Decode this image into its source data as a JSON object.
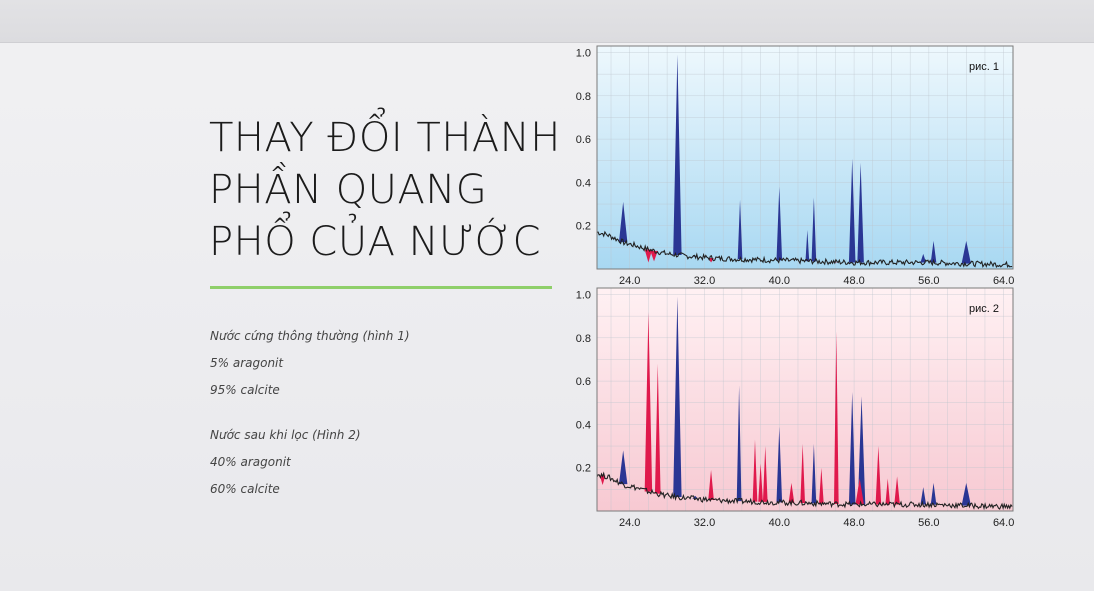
{
  "title_lines": [
    "THAY ĐỔI THÀNH",
    "PHẦN QUANG",
    "PHỔ CỦA NƯỚC"
  ],
  "notes": [
    "Nước cứng thông thường (hình 1)",
    "5% aragonit",
    "95% calcite",
    "Nước sau khi lọc (Hình 2)",
    "40% aragonit",
    "60% calcite"
  ],
  "colors": {
    "blue_peak": "#2a3694",
    "red_peak": "#e0194c",
    "accent_line": "#8fcf6a",
    "plot1_bg_top": "#eef8fd",
    "plot1_bg_bottom": "#a8d8f2",
    "plot2_bg_top": "#fff1f3",
    "plot2_bg_bottom": "#f7c9d2"
  },
  "chart_data": [
    {
      "type": "area",
      "label": "рис. 1",
      "x_ticks": [
        "24.0",
        "32.0",
        "40.0",
        "48.0",
        "56.0",
        "64.0"
      ],
      "y_ticks": [
        "0.2",
        "0.4",
        "0.6",
        "0.8",
        "1.0"
      ],
      "xlim": [
        20.5,
        65.0
      ],
      "ylim": [
        0,
        1.03
      ],
      "grid": true,
      "baseline": [
        [
          20.5,
          0.17
        ],
        [
          21.5,
          0.16
        ],
        [
          22.5,
          0.14
        ],
        [
          23.5,
          0.12
        ],
        [
          24.5,
          0.11
        ],
        [
          26,
          0.09
        ],
        [
          28,
          0.07
        ],
        [
          30,
          0.06
        ],
        [
          33,
          0.05
        ],
        [
          36,
          0.045
        ],
        [
          40,
          0.04
        ],
        [
          44,
          0.035
        ],
        [
          48,
          0.03
        ],
        [
          52,
          0.03
        ],
        [
          56,
          0.03
        ],
        [
          60,
          0.025
        ],
        [
          65,
          0.02
        ]
      ],
      "peaks": [
        {
          "x": 23.3,
          "h": 0.31,
          "w": 0.45,
          "color": "blue"
        },
        {
          "x": 26.0,
          "h": 0.03,
          "w": 0.4,
          "color": "red"
        },
        {
          "x": 26.6,
          "h": 0.035,
          "w": 0.4,
          "color": "red"
        },
        {
          "x": 29.1,
          "h": 0.99,
          "w": 0.45,
          "color": "blue"
        },
        {
          "x": 31.0,
          "h": 0.06,
          "w": 0.35,
          "color": "blue"
        },
        {
          "x": 32.7,
          "h": 0.03,
          "w": 0.3,
          "color": "red"
        },
        {
          "x": 35.8,
          "h": 0.32,
          "w": 0.25,
          "color": "blue"
        },
        {
          "x": 40.0,
          "h": 0.38,
          "w": 0.3,
          "color": "blue"
        },
        {
          "x": 43.0,
          "h": 0.18,
          "w": 0.2,
          "color": "blue"
        },
        {
          "x": 43.7,
          "h": 0.33,
          "w": 0.25,
          "color": "blue"
        },
        {
          "x": 46.0,
          "h": 0.03,
          "w": 0.3,
          "color": "red"
        },
        {
          "x": 47.8,
          "h": 0.51,
          "w": 0.35,
          "color": "blue"
        },
        {
          "x": 48.7,
          "h": 0.49,
          "w": 0.35,
          "color": "blue"
        },
        {
          "x": 55.4,
          "h": 0.07,
          "w": 0.3,
          "color": "blue"
        },
        {
          "x": 56.5,
          "h": 0.13,
          "w": 0.3,
          "color": "blue"
        },
        {
          "x": 60.0,
          "h": 0.13,
          "w": 0.5,
          "color": "blue"
        }
      ]
    },
    {
      "type": "area",
      "label": "рис. 2",
      "x_ticks": [
        "24.0",
        "32.0",
        "40.0",
        "48.0",
        "56.0",
        "64.0"
      ],
      "y_ticks": [
        "0.2",
        "0.4",
        "0.6",
        "0.8",
        "1.0"
      ],
      "xlim": [
        20.5,
        65.0
      ],
      "ylim": [
        0,
        1.03
      ],
      "grid": true,
      "baseline": [
        [
          20.5,
          0.17
        ],
        [
          21.5,
          0.16
        ],
        [
          22.5,
          0.14
        ],
        [
          23.5,
          0.12
        ],
        [
          24.5,
          0.11
        ],
        [
          26,
          0.09
        ],
        [
          28,
          0.07
        ],
        [
          30,
          0.06
        ],
        [
          33,
          0.05
        ],
        [
          36,
          0.045
        ],
        [
          40,
          0.04
        ],
        [
          44,
          0.035
        ],
        [
          48,
          0.03
        ],
        [
          52,
          0.03
        ],
        [
          56,
          0.03
        ],
        [
          60,
          0.025
        ],
        [
          65,
          0.02
        ]
      ],
      "peaks": [
        {
          "x": 21.1,
          "h": 0.12,
          "w": 0.3,
          "color": "red"
        },
        {
          "x": 23.3,
          "h": 0.28,
          "w": 0.45,
          "color": "blue"
        },
        {
          "x": 26.0,
          "h": 0.92,
          "w": 0.4,
          "color": "red"
        },
        {
          "x": 27.0,
          "h": 0.68,
          "w": 0.3,
          "color": "red"
        },
        {
          "x": 29.1,
          "h": 0.99,
          "w": 0.45,
          "color": "blue"
        },
        {
          "x": 31.0,
          "h": 0.07,
          "w": 0.3,
          "color": "blue"
        },
        {
          "x": 32.7,
          "h": 0.19,
          "w": 0.3,
          "color": "red"
        },
        {
          "x": 35.7,
          "h": 0.58,
          "w": 0.25,
          "color": "blue"
        },
        {
          "x": 37.4,
          "h": 0.33,
          "w": 0.25,
          "color": "red"
        },
        {
          "x": 38.0,
          "h": 0.22,
          "w": 0.25,
          "color": "red"
        },
        {
          "x": 38.5,
          "h": 0.3,
          "w": 0.25,
          "color": "red"
        },
        {
          "x": 40.0,
          "h": 0.39,
          "w": 0.3,
          "color": "blue"
        },
        {
          "x": 41.3,
          "h": 0.13,
          "w": 0.3,
          "color": "red"
        },
        {
          "x": 42.5,
          "h": 0.31,
          "w": 0.25,
          "color": "red"
        },
        {
          "x": 43.7,
          "h": 0.31,
          "w": 0.25,
          "color": "blue"
        },
        {
          "x": 44.5,
          "h": 0.2,
          "w": 0.25,
          "color": "red"
        },
        {
          "x": 46.1,
          "h": 0.83,
          "w": 0.25,
          "color": "red"
        },
        {
          "x": 47.8,
          "h": 0.55,
          "w": 0.35,
          "color": "blue"
        },
        {
          "x": 48.8,
          "h": 0.53,
          "w": 0.4,
          "color": "blue"
        },
        {
          "x": 48.6,
          "h": 0.15,
          "w": 0.45,
          "color": "red"
        },
        {
          "x": 50.6,
          "h": 0.3,
          "w": 0.3,
          "color": "red"
        },
        {
          "x": 51.6,
          "h": 0.15,
          "w": 0.25,
          "color": "red"
        },
        {
          "x": 52.6,
          "h": 0.16,
          "w": 0.3,
          "color": "red"
        },
        {
          "x": 55.4,
          "h": 0.11,
          "w": 0.3,
          "color": "blue"
        },
        {
          "x": 56.5,
          "h": 0.13,
          "w": 0.3,
          "color": "blue"
        },
        {
          "x": 60.0,
          "h": 0.13,
          "w": 0.5,
          "color": "blue"
        }
      ]
    }
  ]
}
